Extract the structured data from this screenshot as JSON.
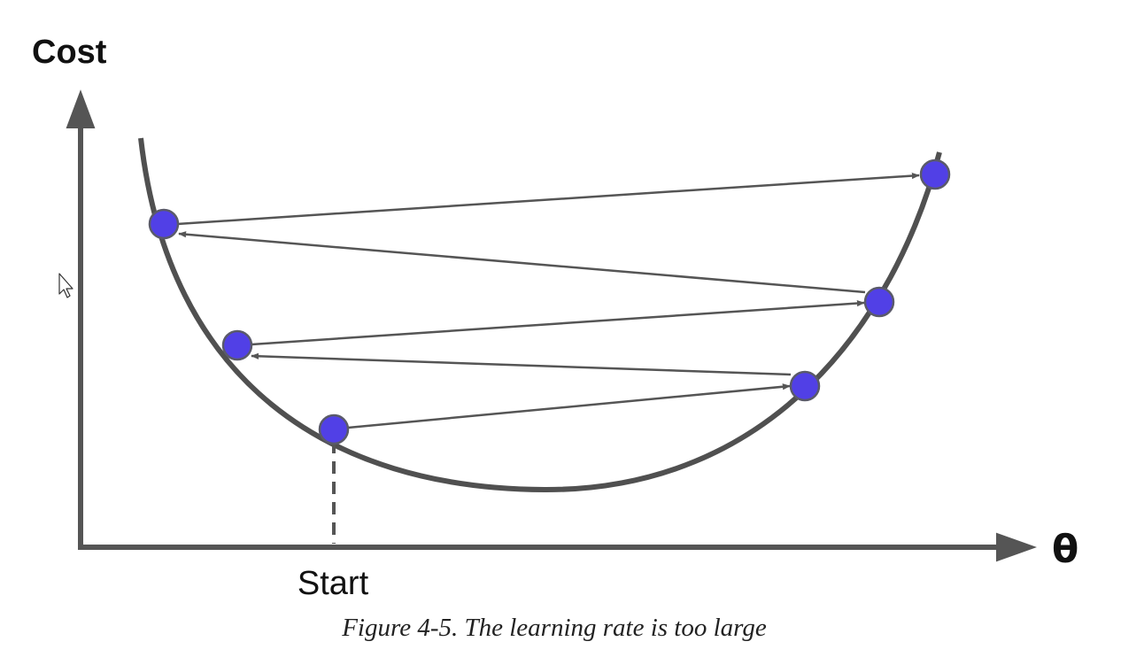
{
  "figure": {
    "y_axis_label": "Cost",
    "x_axis_label": "θ",
    "start_label": "Start",
    "caption": "Figure 4-5. The learning rate is too large"
  },
  "colors": {
    "axis": "#555555",
    "curve": "#505050",
    "arrow": "#555555",
    "point_fill": "#5140e6",
    "point_stroke": "#5a5a6a",
    "dashed_line": "#555555"
  }
}
